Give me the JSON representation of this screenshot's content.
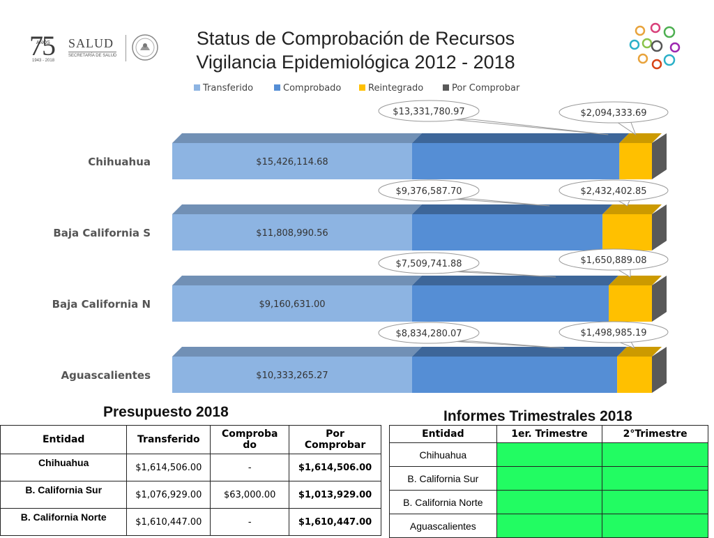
{
  "header": {
    "title_line1": "Status de Comprobación de Recursos",
    "title_line2": "Vigilancia Epidemiológica 2012 - 2018",
    "logo_75": "75",
    "logo_anos": "AÑOS",
    "logo_years": "1943 - 2018",
    "logo_salud": "SALUD",
    "logo_secretaria": "SECRETARÍA DE SALUD"
  },
  "colors": {
    "transferido": "#8db4e2",
    "comprobado": "#558ed5",
    "reintegrado": "#ffc000",
    "por_comprobar": "#595959"
  },
  "chart_data": {
    "type": "bar",
    "orientation": "horizontal",
    "stacked": true,
    "legend_position": "top",
    "categories": [
      "Chihuahua",
      "Baja California S",
      "Baja California N",
      "Aguascalientes"
    ],
    "series": [
      {
        "name": "Transferido",
        "values": [
          15426114.68,
          11808990.56,
          9160631.0,
          10333265.27
        ]
      },
      {
        "name": "Comprobado",
        "values": [
          13331780.97,
          9376587.7,
          7509741.88,
          8834280.07
        ]
      },
      {
        "name": "Reintegrado",
        "values": [
          2094333.69,
          2432402.85,
          1650889.08,
          1498985.19
        ]
      },
      {
        "name": "Por Comprobar",
        "values": [
          0,
          0,
          0,
          0
        ]
      }
    ],
    "labels": {
      "transferido": [
        "$15,426,114.68",
        "$11,808,990.56",
        "$9,160,631.00",
        "$10,333,265.27"
      ],
      "comprobado": [
        "$13,331,780.97",
        "$9,376,587.70",
        "$7,509,741.88",
        "$8,834,280.07"
      ],
      "reintegrado": [
        "$2,094,333.69",
        "$2,432,402.85",
        "$1,650,889.08",
        "$1,498,985.19"
      ]
    }
  },
  "presupuesto": {
    "title": "Presupuesto 2018",
    "headers": [
      "Entidad",
      "Transferido",
      "Comprobado",
      "Por Comprobar"
    ],
    "rows": [
      [
        "Chihuahua",
        "$1,614,506.00",
        "-",
        "$1,614,506.00"
      ],
      [
        "B. California Sur",
        "$1,076,929.00",
        "$63,000.00",
        "$1,013,929.00"
      ],
      [
        "B. California Norte",
        "$1,610,447.00",
        "-",
        "$1,610,447.00"
      ]
    ]
  },
  "informes": {
    "title": "Informes Trimestrales 2018",
    "headers": [
      "Entidad",
      "1er. Trimestre",
      "2°Trimestre"
    ],
    "rows": [
      "Chihuahua",
      "B. California Sur",
      "B. California Norte",
      "Aguascalientes"
    ],
    "status_color": "#22fc62"
  }
}
